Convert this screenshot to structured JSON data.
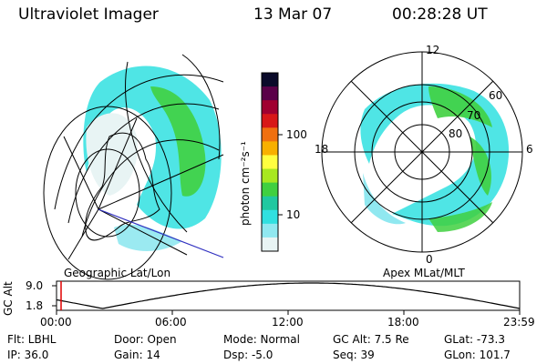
{
  "header": {
    "instrument": "Ultraviolet Imager",
    "date": "13 Mar 07",
    "time": "00:28:28 UT"
  },
  "geo_panel": {
    "label": "Geographic Lat/Lon"
  },
  "apex_panel": {
    "label": "Apex MLat/MLT",
    "mlt_labels": {
      "top": "12",
      "left": "18",
      "right": "6",
      "bottom": "0"
    },
    "mlat_labels": [
      "60",
      "70",
      "80"
    ]
  },
  "colorbar": {
    "unit_label": "photon cm⁻²s⁻¹",
    "ticks": [
      "100",
      "10"
    ],
    "colors": [
      "#0a0a2a",
      "#5a0048",
      "#a00030",
      "#d81818",
      "#f07010",
      "#f8b000",
      "#ffff40",
      "#a8e820",
      "#40d040",
      "#20c8a0",
      "#30e0e0",
      "#90e8f0",
      "#e8f4f4"
    ]
  },
  "gc_alt_panel": {
    "axis_label": "GC Alt",
    "y_ticks": [
      "9.0",
      "1.8"
    ],
    "x_ticks": [
      "00:00",
      "06:00",
      "12:00",
      "18:00",
      "23:59"
    ],
    "marker_color": "#e00000"
  },
  "status": {
    "flt": "Flt: LBHL",
    "ip": "IP: 36.0",
    "door": "Door: Open",
    "gain": "Gain: 14",
    "mode": "Mode: Normal",
    "dsp": "Dsp:    -5.0",
    "gc_alt": "GC Alt: 7.5 Re",
    "seq": "Seq: 39",
    "glat": "GLat: -73.3",
    "glon": "GLon: 101.7"
  }
}
